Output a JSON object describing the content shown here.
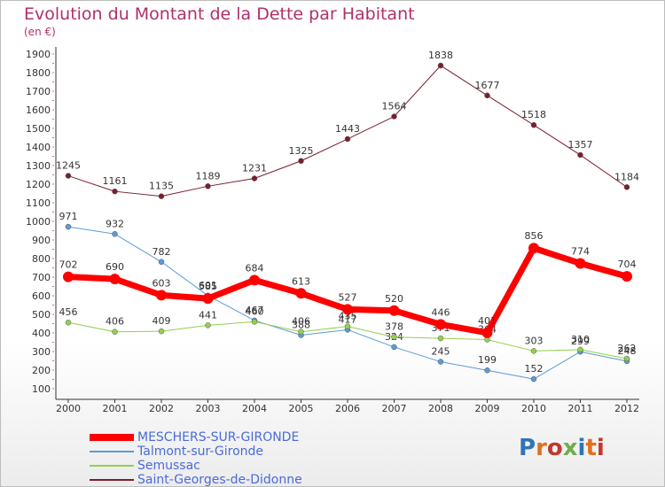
{
  "title": "Evolution du Montant de la Dette par Habitant",
  "subtitle": "(en €)",
  "logo_text": "Proxiti",
  "chart_data": {
    "type": "line",
    "title": "Evolution du Montant de la Dette par Habitant",
    "ylabel": "(en €)",
    "xlabel": "",
    "ylim": [
      100,
      1900
    ],
    "y_ticks": [
      100,
      200,
      300,
      400,
      500,
      600,
      700,
      800,
      900,
      1000,
      1100,
      1200,
      1300,
      1400,
      1500,
      1600,
      1700,
      1800,
      1900
    ],
    "grid": false,
    "legend_placement": "bottom-left",
    "categories": [
      "2000",
      "2001",
      "2002",
      "2003",
      "2004",
      "2005",
      "2006",
      "2007",
      "2008",
      "2009",
      "2010",
      "2011",
      "2012"
    ],
    "series": [
      {
        "name": "Saint-Georges-de-Didonne",
        "color": "#7a1f2b",
        "width": 1,
        "values": [
          1245,
          1161,
          1135,
          1189,
          1231,
          1325,
          1443,
          1564,
          1838,
          1677,
          1518,
          1357,
          1184
        ]
      },
      {
        "name": "Talmont-sur-Gironde",
        "color": "#5b9bd5",
        "width": 1,
        "values": [
          971,
          932,
          782,
          601,
          467,
          388,
          417,
          324,
          245,
          199,
          152,
          299,
          248
        ]
      },
      {
        "name": "Semussac",
        "color": "#92d050",
        "width": 1,
        "values": [
          456,
          406,
          409,
          441,
          460,
          406,
          435,
          378,
          371,
          364,
          303,
          310,
          262
        ]
      },
      {
        "name": "MESCHERS-SUR-GIRONDE",
        "color": "#ff0000",
        "width": 7,
        "values": [
          702,
          690,
          603,
          585,
          684,
          613,
          527,
          520,
          446,
          401,
          856,
          774,
          704
        ]
      }
    ],
    "legend_order": [
      "MESCHERS-SUR-GIRONDE",
      "Talmont-sur-Gironde",
      "Semussac",
      "Saint-Georges-de-Didonne"
    ]
  }
}
